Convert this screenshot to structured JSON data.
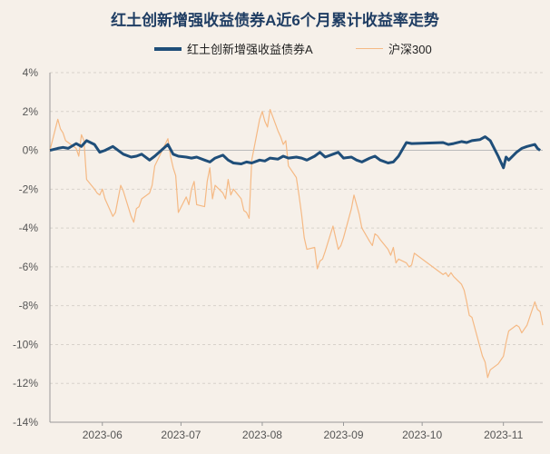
{
  "chart_data": {
    "type": "line",
    "title": "红土创新增强收益债券A近6个月累计收益率走势",
    "xlabel": "",
    "ylabel": "",
    "ylim": [
      -14,
      4
    ],
    "yticks": [
      4,
      2,
      0,
      -2,
      -4,
      -6,
      -8,
      -10,
      -12,
      -14
    ],
    "yunit": "%",
    "xlim": [
      "2023-05-12",
      "2023-11-16"
    ],
    "xticks": [
      "2023-06",
      "2023-07",
      "2023-08",
      "2023-09",
      "2023-10",
      "2023-11"
    ],
    "legend": "top-center",
    "grid": "horizontal-dashed",
    "series": [
      {
        "name": "红土创新增强收益债券A",
        "color": "#1f4e79",
        "points": [
          [
            "2023-05-12",
            0.0
          ],
          [
            "2023-05-15",
            0.1
          ],
          [
            "2023-05-17",
            0.15
          ],
          [
            "2023-05-19",
            0.1
          ],
          [
            "2023-05-22",
            0.35
          ],
          [
            "2023-05-24",
            0.2
          ],
          [
            "2023-05-26",
            0.5
          ],
          [
            "2023-05-29",
            0.3
          ],
          [
            "2023-05-31",
            -0.1
          ],
          [
            "2023-06-02",
            0.0
          ],
          [
            "2023-06-05",
            0.2
          ],
          [
            "2023-06-07",
            0.0
          ],
          [
            "2023-06-09",
            -0.2
          ],
          [
            "2023-06-12",
            -0.35
          ],
          [
            "2023-06-14",
            -0.3
          ],
          [
            "2023-06-16",
            -0.2
          ],
          [
            "2023-06-19",
            -0.5
          ],
          [
            "2023-06-21",
            -0.3
          ],
          [
            "2023-06-26",
            0.3
          ],
          [
            "2023-06-28",
            -0.2
          ],
          [
            "2023-06-30",
            -0.3
          ],
          [
            "2023-07-03",
            -0.35
          ],
          [
            "2023-07-05",
            -0.4
          ],
          [
            "2023-07-07",
            -0.35
          ],
          [
            "2023-07-10",
            -0.5
          ],
          [
            "2023-07-12",
            -0.6
          ],
          [
            "2023-07-14",
            -0.4
          ],
          [
            "2023-07-17",
            -0.25
          ],
          [
            "2023-07-19",
            -0.5
          ],
          [
            "2023-07-21",
            -0.65
          ],
          [
            "2023-07-24",
            -0.7
          ],
          [
            "2023-07-26",
            -0.6
          ],
          [
            "2023-07-28",
            -0.65
          ],
          [
            "2023-07-31",
            -0.5
          ],
          [
            "2023-08-02",
            -0.55
          ],
          [
            "2023-08-04",
            -0.4
          ],
          [
            "2023-08-07",
            -0.45
          ],
          [
            "2023-08-09",
            -0.3
          ],
          [
            "2023-08-11",
            -0.4
          ],
          [
            "2023-08-14",
            -0.35
          ],
          [
            "2023-08-16",
            -0.4
          ],
          [
            "2023-08-18",
            -0.5
          ],
          [
            "2023-08-21",
            -0.3
          ],
          [
            "2023-08-23",
            -0.1
          ],
          [
            "2023-08-25",
            -0.35
          ],
          [
            "2023-08-28",
            -0.2
          ],
          [
            "2023-08-30",
            -0.1
          ],
          [
            "2023-09-01",
            -0.4
          ],
          [
            "2023-09-04",
            -0.35
          ],
          [
            "2023-09-06",
            -0.5
          ],
          [
            "2023-09-08",
            -0.6
          ],
          [
            "2023-09-11",
            -0.4
          ],
          [
            "2023-09-13",
            -0.3
          ],
          [
            "2023-09-15",
            -0.5
          ],
          [
            "2023-09-18",
            -0.65
          ],
          [
            "2023-09-20",
            -0.6
          ],
          [
            "2023-09-22",
            -0.3
          ],
          [
            "2023-09-25",
            0.4
          ],
          [
            "2023-09-27",
            0.35
          ],
          [
            "2023-10-09",
            0.4
          ],
          [
            "2023-10-11",
            0.3
          ],
          [
            "2023-10-13",
            0.35
          ],
          [
            "2023-10-16",
            0.45
          ],
          [
            "2023-10-18",
            0.4
          ],
          [
            "2023-10-20",
            0.5
          ],
          [
            "2023-10-23",
            0.55
          ],
          [
            "2023-10-25",
            0.7
          ],
          [
            "2023-10-27",
            0.5
          ],
          [
            "2023-10-30",
            -0.3
          ],
          [
            "2023-11-01",
            -0.9
          ],
          [
            "2023-11-02",
            -0.35
          ],
          [
            "2023-11-03",
            -0.5
          ],
          [
            "2023-11-06",
            -0.1
          ],
          [
            "2023-11-08",
            0.1
          ],
          [
            "2023-11-10",
            0.2
          ],
          [
            "2023-11-13",
            0.3
          ],
          [
            "2023-11-14",
            0.1
          ],
          [
            "2023-11-15",
            0.0
          ]
        ]
      },
      {
        "name": "沪深300",
        "color": "#f5b984",
        "points": [
          [
            "2023-05-12",
            0.0
          ],
          [
            "2023-05-15",
            1.6
          ],
          [
            "2023-05-16",
            1.1
          ],
          [
            "2023-05-17",
            0.9
          ],
          [
            "2023-05-18",
            0.5
          ],
          [
            "2023-05-19",
            0.4
          ],
          [
            "2023-05-22",
            0.1
          ],
          [
            "2023-05-23",
            -0.3
          ],
          [
            "2023-05-24",
            0.8
          ],
          [
            "2023-05-25",
            0.5
          ],
          [
            "2023-05-26",
            -1.5
          ],
          [
            "2023-05-29",
            -2.0
          ],
          [
            "2023-05-30",
            -2.2
          ],
          [
            "2023-05-31",
            -2.3
          ],
          [
            "2023-06-01",
            -2.0
          ],
          [
            "2023-06-02",
            -2.5
          ],
          [
            "2023-06-05",
            -3.4
          ],
          [
            "2023-06-06",
            -3.2
          ],
          [
            "2023-06-07",
            -2.5
          ],
          [
            "2023-06-08",
            -1.8
          ],
          [
            "2023-06-09",
            -2.1
          ],
          [
            "2023-06-12",
            -3.4
          ],
          [
            "2023-06-13",
            -3.7
          ],
          [
            "2023-06-14",
            -3.0
          ],
          [
            "2023-06-15",
            -2.9
          ],
          [
            "2023-06-16",
            -2.5
          ],
          [
            "2023-06-19",
            -2.2
          ],
          [
            "2023-06-20",
            -1.8
          ],
          [
            "2023-06-21",
            -0.8
          ],
          [
            "2023-06-26",
            0.6
          ],
          [
            "2023-06-27",
            -0.3
          ],
          [
            "2023-06-28",
            -0.9
          ],
          [
            "2023-06-29",
            -1.3
          ],
          [
            "2023-06-30",
            -3.2
          ],
          [
            "2023-07-03",
            -2.4
          ],
          [
            "2023-07-04",
            -2.8
          ],
          [
            "2023-07-05",
            -2.0
          ],
          [
            "2023-07-06",
            -1.6
          ],
          [
            "2023-07-07",
            -2.8
          ],
          [
            "2023-07-10",
            -2.9
          ],
          [
            "2023-07-11",
            -1.6
          ],
          [
            "2023-07-12",
            -0.9
          ],
          [
            "2023-07-13",
            -2.5
          ],
          [
            "2023-07-14",
            -1.8
          ],
          [
            "2023-07-17",
            -2.2
          ],
          [
            "2023-07-18",
            -2.5
          ],
          [
            "2023-07-19",
            -1.5
          ],
          [
            "2023-07-20",
            -2.3
          ],
          [
            "2023-07-21",
            -2.0
          ],
          [
            "2023-07-24",
            -2.5
          ],
          [
            "2023-07-25",
            -3.1
          ],
          [
            "2023-07-26",
            -3.2
          ],
          [
            "2023-07-27",
            -3.5
          ],
          [
            "2023-07-28",
            -0.5
          ],
          [
            "2023-07-31",
            1.6
          ],
          [
            "2023-08-01",
            2.0
          ],
          [
            "2023-08-02",
            1.5
          ],
          [
            "2023-08-03",
            1.2
          ],
          [
            "2023-08-04",
            2.1
          ],
          [
            "2023-08-07",
            1.0
          ],
          [
            "2023-08-08",
            0.7
          ],
          [
            "2023-08-09",
            0.3
          ],
          [
            "2023-08-10",
            0.5
          ],
          [
            "2023-08-11",
            -0.8
          ],
          [
            "2023-08-14",
            -1.4
          ],
          [
            "2023-08-15",
            -2.3
          ],
          [
            "2023-08-16",
            -3.3
          ],
          [
            "2023-08-17",
            -4.5
          ],
          [
            "2023-08-18",
            -5.1
          ],
          [
            "2023-08-21",
            -5.0
          ],
          [
            "2023-08-22",
            -6.1
          ],
          [
            "2023-08-23",
            -5.7
          ],
          [
            "2023-08-24",
            -5.6
          ],
          [
            "2023-08-25",
            -5.2
          ],
          [
            "2023-08-28",
            -3.9
          ],
          [
            "2023-08-29",
            -4.5
          ],
          [
            "2023-08-30",
            -5.1
          ],
          [
            "2023-08-31",
            -4.9
          ],
          [
            "2023-09-01",
            -4.5
          ],
          [
            "2023-09-04",
            -3.0
          ],
          [
            "2023-09-05",
            -2.3
          ],
          [
            "2023-09-06",
            -2.8
          ],
          [
            "2023-09-07",
            -3.3
          ],
          [
            "2023-09-08",
            -4.0
          ],
          [
            "2023-09-11",
            -4.7
          ],
          [
            "2023-09-12",
            -4.9
          ],
          [
            "2023-09-13",
            -4.3
          ],
          [
            "2023-09-14",
            -4.4
          ],
          [
            "2023-09-15",
            -4.6
          ],
          [
            "2023-09-18",
            -5.1
          ],
          [
            "2023-09-19",
            -5.4
          ],
          [
            "2023-09-20",
            -5.0
          ],
          [
            "2023-09-21",
            -5.8
          ],
          [
            "2023-09-22",
            -5.6
          ],
          [
            "2023-09-25",
            -5.8
          ],
          [
            "2023-09-26",
            -6.0
          ],
          [
            "2023-09-27",
            -5.9
          ],
          [
            "2023-09-28",
            -5.3
          ],
          [
            "2023-10-09",
            -6.4
          ],
          [
            "2023-10-10",
            -6.3
          ],
          [
            "2023-10-11",
            -6.5
          ],
          [
            "2023-10-12",
            -6.3
          ],
          [
            "2023-10-13",
            -6.5
          ],
          [
            "2023-10-16",
            -6.9
          ],
          [
            "2023-10-17",
            -7.2
          ],
          [
            "2023-10-18",
            -7.8
          ],
          [
            "2023-10-19",
            -8.5
          ],
          [
            "2023-10-20",
            -8.6
          ],
          [
            "2023-10-23",
            -10.1
          ],
          [
            "2023-10-24",
            -10.6
          ],
          [
            "2023-10-25",
            -10.9
          ],
          [
            "2023-10-26",
            -11.7
          ],
          [
            "2023-10-27",
            -11.3
          ],
          [
            "2023-10-30",
            -11.0
          ],
          [
            "2023-10-31",
            -10.8
          ],
          [
            "2023-11-01",
            -10.6
          ],
          [
            "2023-11-02",
            -9.9
          ],
          [
            "2023-11-03",
            -9.3
          ],
          [
            "2023-11-06",
            -9.0
          ],
          [
            "2023-11-07",
            -9.1
          ],
          [
            "2023-11-08",
            -9.4
          ],
          [
            "2023-11-09",
            -9.2
          ],
          [
            "2023-11-10",
            -9.0
          ],
          [
            "2023-11-13",
            -7.8
          ],
          [
            "2023-11-14",
            -8.2
          ],
          [
            "2023-11-15",
            -8.3
          ],
          [
            "2023-11-16",
            -9.0
          ]
        ]
      }
    ]
  }
}
